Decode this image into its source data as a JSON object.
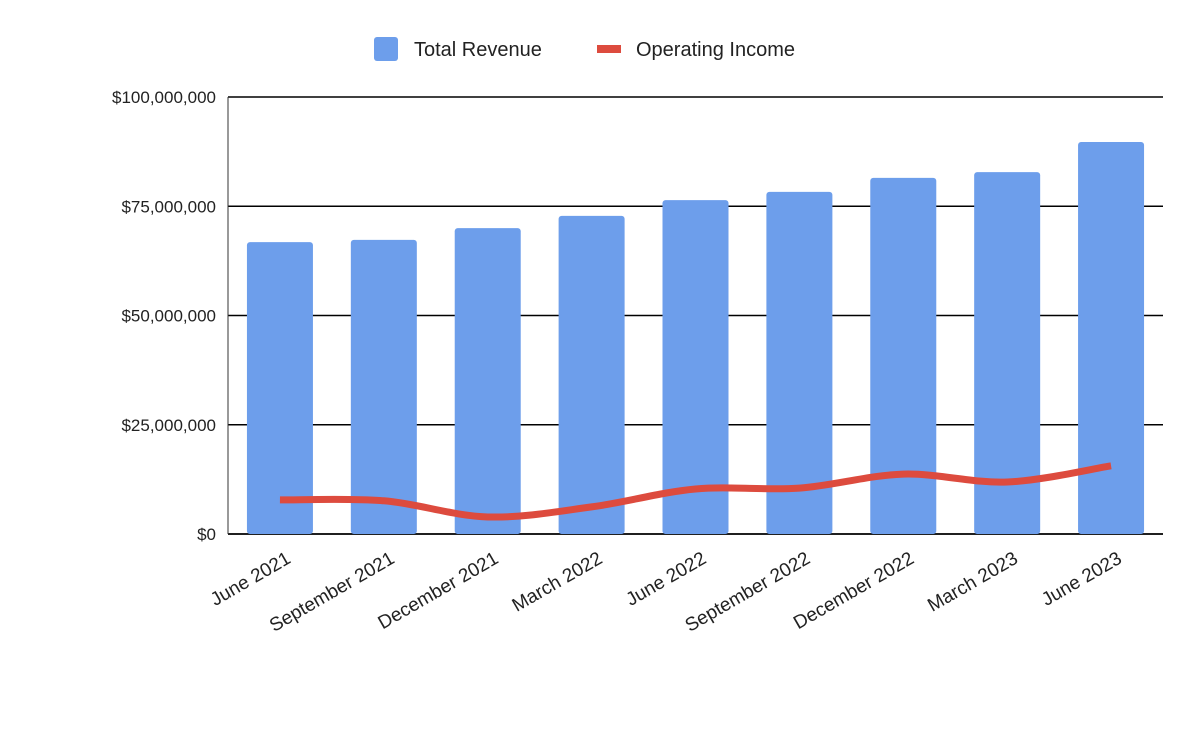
{
  "chart_data": {
    "type": "bar",
    "title": "",
    "xlabel": "",
    "ylabel": "",
    "categories": [
      "June 2021",
      "September 2021",
      "December 2021",
      "March 2022",
      "June 2022",
      "September 2022",
      "December 2022",
      "March 2023",
      "June 2023"
    ],
    "series": [
      {
        "name": "Total Revenue",
        "type": "bar",
        "color": "#6d9eeb",
        "values": [
          66800000,
          67300000,
          70000000,
          72800000,
          76400000,
          78300000,
          81500000,
          82800000,
          89700000
        ]
      },
      {
        "name": "Operating Income",
        "type": "line",
        "smooth": true,
        "color": "#dd4b3e",
        "values": [
          7800000,
          7600000,
          3900000,
          6200000,
          10300000,
          10500000,
          13700000,
          11900000,
          15600000
        ]
      }
    ],
    "ylim": [
      0,
      100000000
    ],
    "yticks": [
      0,
      25000000,
      50000000,
      75000000,
      100000000
    ],
    "ytick_labels": [
      "$0",
      "$25,000,000",
      "$50,000,000",
      "$75,000,000",
      "$100,000,000"
    ],
    "grid": true,
    "legend": "top"
  }
}
